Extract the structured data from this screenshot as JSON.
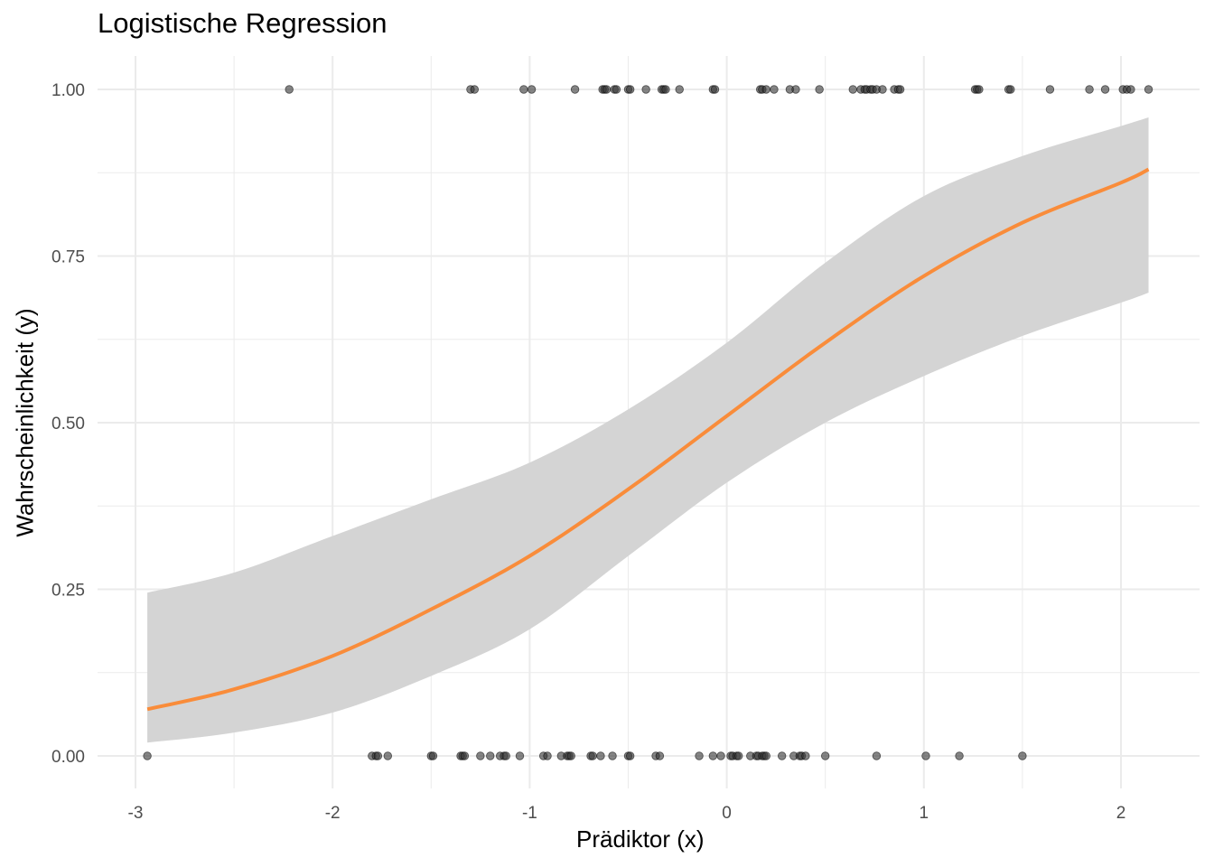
{
  "chart_data": {
    "type": "scatter",
    "title": "Logistische Regression",
    "xlabel": "Prädiktor (x)",
    "ylabel": "Wahrscheinlichkeit (y)",
    "xlim": [
      -3.1,
      2.35
    ],
    "ylim": [
      -0.05,
      1.05
    ],
    "x_ticks": [
      -3,
      -2,
      -1,
      0,
      1,
      2
    ],
    "x_tick_labels": [
      "-3",
      "-2",
      "-1",
      "0",
      "1",
      "2"
    ],
    "y_ticks": [
      0,
      0.25,
      0.5,
      0.75,
      1
    ],
    "y_tick_labels": [
      "0.00",
      "0.25",
      "0.50",
      "0.75",
      "1.00"
    ],
    "grid": true,
    "colors": {
      "fit_line": "#f98c3a",
      "ribbon": "#d4d4d4",
      "points": "#333333",
      "grid": "#ebebeb"
    },
    "points_y1": [
      -2.22,
      -1.3,
      -1.28,
      -1.03,
      -0.99,
      -0.77,
      -0.63,
      -0.62,
      -0.61,
      -0.57,
      -0.56,
      -0.5,
      -0.49,
      -0.41,
      -0.33,
      -0.32,
      -0.31,
      -0.24,
      -0.07,
      -0.06,
      0.17,
      0.18,
      0.2,
      0.24,
      0.32,
      0.35,
      0.47,
      0.64,
      0.68,
      0.7,
      0.71,
      0.73,
      0.74,
      0.76,
      0.79,
      0.85,
      0.87,
      0.88,
      1.26,
      1.27,
      1.28,
      1.43,
      1.44,
      1.64,
      1.84,
      1.92,
      2.01,
      2.03,
      2.05,
      2.14
    ],
    "points_y0": [
      -2.94,
      -1.8,
      -1.78,
      -1.77,
      -1.72,
      -1.5,
      -1.49,
      -1.35,
      -1.34,
      -1.33,
      -1.25,
      -1.2,
      -1.15,
      -1.13,
      -1.12,
      -1.05,
      -0.93,
      -0.91,
      -0.84,
      -0.81,
      -0.8,
      -0.79,
      -0.69,
      -0.68,
      -0.64,
      -0.58,
      -0.5,
      -0.49,
      -0.36,
      -0.34,
      -0.14,
      -0.07,
      -0.03,
      0.02,
      0.03,
      0.05,
      0.06,
      0.12,
      0.15,
      0.16,
      0.18,
      0.19,
      0.2,
      0.28,
      0.34,
      0.37,
      0.38,
      0.4,
      0.5,
      0.76,
      1.01,
      1.18,
      1.5
    ],
    "fit_curve": {
      "x": [
        -2.94,
        -2.5,
        -2.0,
        -1.5,
        -1.0,
        -0.5,
        0.0,
        0.5,
        1.0,
        1.5,
        2.0,
        2.14
      ],
      "fit": [
        0.07,
        0.1,
        0.15,
        0.22,
        0.3,
        0.4,
        0.51,
        0.62,
        0.72,
        0.8,
        0.86,
        0.88
      ],
      "lower": [
        0.02,
        0.035,
        0.065,
        0.12,
        0.19,
        0.3,
        0.41,
        0.5,
        0.57,
        0.63,
        0.68,
        0.695
      ],
      "upper": [
        0.245,
        0.275,
        0.33,
        0.385,
        0.44,
        0.52,
        0.62,
        0.74,
        0.84,
        0.9,
        0.945,
        0.958
      ]
    }
  }
}
